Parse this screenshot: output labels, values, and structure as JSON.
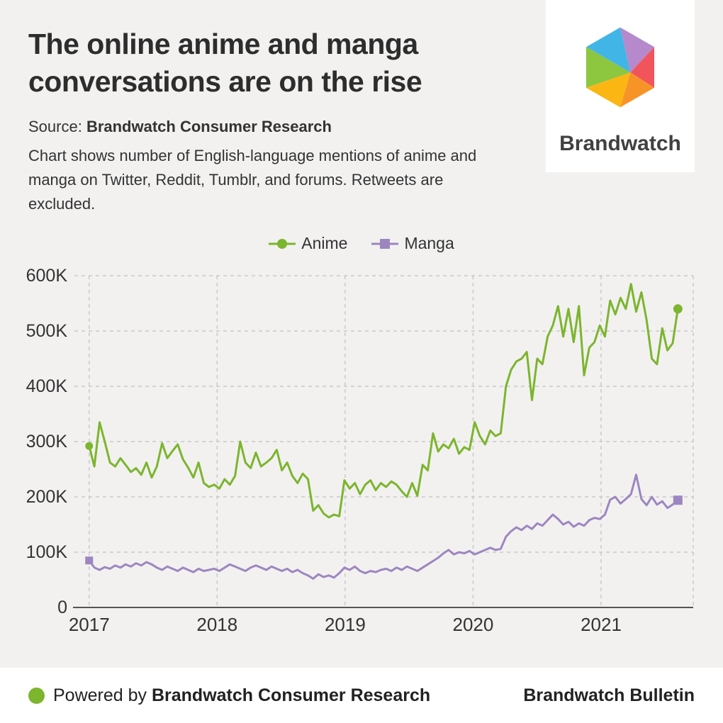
{
  "page": {
    "title": "The online anime and manga conversations are on the rise",
    "source_prefix": "Source: ",
    "source_name": "Brandwatch Consumer Research",
    "description": "Chart shows number of English-language mentions of anime and manga on Twitter, Reddit, Tumblr, and forums. Retweets are excluded.",
    "logo_text": "Brandwatch"
  },
  "footer": {
    "powered_prefix": "Powered by ",
    "powered_name": "Brandwatch Consumer Research",
    "right_text": "Brandwatch Bulletin"
  },
  "colors": {
    "background": "#f2f1f0",
    "anime_green": "#7cb52e",
    "manga_purple": "#9d86c0",
    "grid": "#c9c9c9",
    "axis": "#555555",
    "text": "#333333",
    "logo_blue": "#41b6e6",
    "logo_purple": "#b589cb",
    "logo_red": "#f2545b",
    "logo_orange": "#f79428",
    "logo_yellow": "#fcb614",
    "logo_green": "#8dc63f"
  },
  "chart_data": {
    "type": "line",
    "title": "",
    "xlabel": "",
    "ylabel": "",
    "x_tick_labels": [
      "2017",
      "2018",
      "2019",
      "2020",
      "2021"
    ],
    "x_tick_values": [
      2017,
      2018,
      2019,
      2020,
      2021
    ],
    "xlim": [
      2016.885,
      2021.72
    ],
    "y_tick_labels": [
      "0",
      "100K",
      "200K",
      "300K",
      "400K",
      "500K",
      "600K"
    ],
    "y_tick_values_k": [
      0,
      100,
      200,
      300,
      400,
      500,
      600
    ],
    "ylim_k": [
      0,
      600
    ],
    "values_unit": "thousands of mentions (K), weekly English-language mentions",
    "grid": "dashed",
    "legend_position": "top-center",
    "x_start": 2017.0,
    "x_end": 2021.6,
    "series": [
      {
        "name": "Anime",
        "color": "#7cb52e",
        "marker": "circle",
        "values_k": [
          292,
          255,
          335,
          300,
          262,
          255,
          270,
          258,
          245,
          252,
          240,
          262,
          235,
          255,
          297,
          270,
          283,
          295,
          268,
          253,
          235,
          262,
          225,
          218,
          222,
          215,
          232,
          222,
          238,
          300,
          262,
          252,
          280,
          255,
          262,
          270,
          285,
          248,
          262,
          238,
          225,
          242,
          232,
          175,
          185,
          170,
          163,
          168,
          165,
          230,
          215,
          225,
          205,
          222,
          230,
          212,
          225,
          218,
          228,
          222,
          210,
          200,
          225,
          202,
          258,
          248,
          315,
          282,
          295,
          288,
          305,
          278,
          290,
          285,
          335,
          310,
          295,
          320,
          310,
          315,
          400,
          430,
          445,
          450,
          462,
          375,
          450,
          440,
          490,
          510,
          545,
          490,
          540,
          480,
          545,
          420,
          470,
          480,
          510,
          490,
          555,
          530,
          560,
          540,
          585,
          535,
          570,
          520,
          450,
          440,
          505,
          465,
          478,
          540
        ]
      },
      {
        "name": "Manga",
        "color": "#9d86c0",
        "marker": "square",
        "values_k": [
          85,
          72,
          68,
          73,
          70,
          76,
          72,
          78,
          74,
          80,
          76,
          82,
          78,
          72,
          68,
          74,
          70,
          66,
          72,
          68,
          64,
          70,
          66,
          68,
          70,
          66,
          72,
          78,
          74,
          70,
          66,
          72,
          76,
          72,
          68,
          74,
          70,
          66,
          70,
          64,
          68,
          62,
          58,
          52,
          60,
          55,
          58,
          54,
          62,
          72,
          68,
          74,
          66,
          62,
          66,
          64,
          68,
          70,
          66,
          72,
          68,
          74,
          70,
          66,
          72,
          78,
          84,
          90,
          98,
          104,
          96,
          100,
          98,
          102,
          96,
          100,
          104,
          108,
          104,
          106,
          128,
          138,
          145,
          140,
          148,
          142,
          152,
          148,
          158,
          168,
          160,
          150,
          155,
          146,
          152,
          148,
          158,
          162,
          160,
          168,
          195,
          200,
          188,
          196,
          205,
          240,
          196,
          185,
          200,
          186,
          192,
          180,
          186,
          194
        ]
      }
    ]
  }
}
